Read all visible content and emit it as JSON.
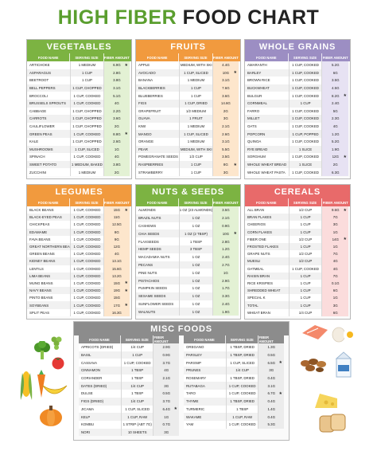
{
  "title": {
    "part1": "HIGH FIBER",
    "part2": "FOOD CHART"
  },
  "columns": {
    "food": "FOOD NAME",
    "serving": "SERVING SIZE",
    "fiber": "FIBER AMOUNT"
  },
  "colors": {
    "green": "#7cb342",
    "green_light": "#e3f1d4",
    "orange": "#f19a3e",
    "orange_light": "#fde6cc",
    "purple": "#9c8ec3",
    "purple_light": "#e7e2f3",
    "red": "#e86a6a",
    "red_light": "#fbdcdc",
    "gray": "#8c8c8c",
    "gray_light": "#ececec"
  },
  "sections": {
    "vegetables": {
      "title": "VEGETABLES",
      "rows": [
        {
          "food": "ARTICHOKE",
          "serving": "1 MEDIUM",
          "fiber": "6.9G",
          "star": "★"
        },
        {
          "food": "ASPARAGUS",
          "serving": "1 CUP",
          "fiber": "2.8G",
          "star": ""
        },
        {
          "food": "BEETROOT",
          "serving": "1 CUP",
          "fiber": "3.8G",
          "star": ""
        },
        {
          "food": "BELL PEPPERS",
          "serving": "1 CUP, CHOPPED",
          "fiber": "3.1G",
          "star": ""
        },
        {
          "food": "BROCCOLI",
          "serving": "1 CUP, COOKED",
          "fiber": "5.1G",
          "star": ""
        },
        {
          "food": "BRUSSELS SPROUTS",
          "serving": "1 CUP, COOKED",
          "fiber": "4G",
          "star": ""
        },
        {
          "food": "CABBAGE",
          "serving": "1 CUP, CHOPPED",
          "fiber": "2.2G",
          "star": ""
        },
        {
          "food": "CARROTS",
          "serving": "1 CUP, CHOPPED",
          "fiber": "3.6G",
          "star": ""
        },
        {
          "food": "CAULIFLOWER",
          "serving": "1 CUP, CHOPPED",
          "fiber": "2G",
          "star": ""
        },
        {
          "food": "GREEN PEAS",
          "serving": "1 CUP, COOKED",
          "fiber": "8.8G",
          "star": "★"
        },
        {
          "food": "KALE",
          "serving": "1 CUP, CHOPPED",
          "fiber": "2.6G",
          "star": ""
        },
        {
          "food": "MUSHROOMS",
          "serving": "1 CUP, SLICED",
          "fiber": "1G",
          "star": ""
        },
        {
          "food": "SPINACH",
          "serving": "1 CUP, COOKED",
          "fiber": "4G",
          "star": ""
        },
        {
          "food": "SWEET POTATO",
          "serving": "1 MEDIUM, BAKED",
          "fiber": "3.8G",
          "star": ""
        },
        {
          "food": "ZUCCHINI",
          "serving": "1 MEDIUM",
          "fiber": "2G",
          "star": ""
        }
      ]
    },
    "fruits": {
      "title": "FRUITS",
      "rows": [
        {
          "food": "APPLE",
          "serving": "1 MEDIUM, WITH SKIN",
          "fiber": "4.4G",
          "star": ""
        },
        {
          "food": "AVOCADO",
          "serving": "1 CUP, SLICED",
          "fiber": "10G",
          "star": "★"
        },
        {
          "food": "BANANA",
          "serving": "1 MEDIUM",
          "fiber": "3.1G",
          "star": ""
        },
        {
          "food": "BLACKBERRIES",
          "serving": "1 CUP",
          "fiber": "7.6G",
          "star": ""
        },
        {
          "food": "BLUEBERRIES",
          "serving": "1 CUP",
          "fiber": "3.6G",
          "star": ""
        },
        {
          "food": "FIGS",
          "serving": "1 CUP, DRIED",
          "fiber": "14.6G",
          "star": ""
        },
        {
          "food": "GRAPEFRUIT",
          "serving": "1/2 MEDIUM",
          "fiber": "2G",
          "star": ""
        },
        {
          "food": "GUAVA",
          "serving": "1 FRUIT",
          "fiber": "3G",
          "star": ""
        },
        {
          "food": "KIWI",
          "serving": "1 MEDIUM",
          "fiber": "2.1G",
          "star": ""
        },
        {
          "food": "MANGO",
          "serving": "1 CUP, SLICED",
          "fiber": "2.6G",
          "star": ""
        },
        {
          "food": "ORANGE",
          "serving": "1 MEDIUM",
          "fiber": "3.1G",
          "star": ""
        },
        {
          "food": "PEAR",
          "serving": "1 MEDIUM, WITH SKIN",
          "fiber": "5.5G",
          "star": ""
        },
        {
          "food": "POMEGRANATE SEEDS",
          "serving": "1/2 CUP",
          "fiber": "3.5G",
          "star": ""
        },
        {
          "food": "RASPBERRIES",
          "serving": "1 CUP",
          "fiber": "8G",
          "star": "★"
        },
        {
          "food": "STRAWBERRY",
          "serving": "1 CUP",
          "fiber": "3G",
          "star": ""
        }
      ]
    },
    "grains": {
      "title": "WHOLE GRAINS",
      "rows": [
        {
          "food": "AMARANTH",
          "serving": "1 CUP, COOKED",
          "fiber": "5.2G",
          "star": ""
        },
        {
          "food": "BARLEY",
          "serving": "1 CUP, COOKED",
          "fiber": "6G",
          "star": ""
        },
        {
          "food": "BROWN RICE",
          "serving": "1 CUP, COOKED",
          "fiber": "3.5G",
          "star": ""
        },
        {
          "food": "BUCKWHEAT",
          "serving": "1 CUP, COOKED",
          "fiber": "4.5G",
          "star": ""
        },
        {
          "food": "BULGUR",
          "serving": "1 CUP, COOKED",
          "fiber": "8.2G",
          "star": "★"
        },
        {
          "food": "CORNMEAL",
          "serving": "1 CUP",
          "fiber": "2.4G",
          "star": ""
        },
        {
          "food": "FARRO",
          "serving": "1 CUP, COOKED",
          "fiber": "5G",
          "star": ""
        },
        {
          "food": "MILLET",
          "serving": "1 CUP, COOKED",
          "fiber": "2.3G",
          "star": ""
        },
        {
          "food": "OATS",
          "serving": "1 CUP, COOKED",
          "fiber": "4G",
          "star": ""
        },
        {
          "food": "POPCORN",
          "serving": "1 CUP, POPPED",
          "fiber": "1.2G",
          "star": ""
        },
        {
          "food": "QUINOA",
          "serving": "1 CUP, COOKED",
          "fiber": "5.2G",
          "star": ""
        },
        {
          "food": "RYE BREAD",
          "serving": "1 SLICE",
          "fiber": "1.9G",
          "star": ""
        },
        {
          "food": "SORGHUM",
          "serving": "1 CUP, COOKED",
          "fiber": "12G",
          "star": "★"
        },
        {
          "food": "WHOLE WHEAT BREAD",
          "serving": "1 SLICE",
          "fiber": "2G",
          "star": ""
        },
        {
          "food": "WHOLE WHEAT PASTA",
          "serving": "1 CUP, COOKED",
          "fiber": "6.3G",
          "star": ""
        }
      ]
    },
    "legumes": {
      "title": "LEGUMES",
      "rows": [
        {
          "food": "BLACK BEANS",
          "serving": "1 CUP, COOKED",
          "fiber": "15G",
          "star": "★"
        },
        {
          "food": "BLACK-EYED PEAS",
          "serving": "1 CUP, COOKED",
          "fiber": "11G",
          "star": ""
        },
        {
          "food": "CHICKPEAS",
          "serving": "1 CUP, COOKED",
          "fiber": "12.5G",
          "star": ""
        },
        {
          "food": "EDAMAME",
          "serving": "1 CUP, COOKED",
          "fiber": "8G",
          "star": ""
        },
        {
          "food": "FAVA BEANS",
          "serving": "1 CUP, COOKED",
          "fiber": "9G",
          "star": ""
        },
        {
          "food": "GREAT NORTHERN BEANS",
          "serving": "1 CUP, COOKED",
          "fiber": "12G",
          "star": ""
        },
        {
          "food": "GREEN BEANS",
          "serving": "1 CUP, COOKED",
          "fiber": "4G",
          "star": ""
        },
        {
          "food": "KIDNEY BEANS",
          "serving": "1 CUP, COOKED",
          "fiber": "13.1G",
          "star": ""
        },
        {
          "food": "LENTILS",
          "serving": "1 CUP, COOKED",
          "fiber": "15.6G",
          "star": ""
        },
        {
          "food": "LIMA BEANS",
          "serving": "1 CUP, COOKED",
          "fiber": "13.2G",
          "star": ""
        },
        {
          "food": "MUNG BEANS",
          "serving": "1 CUP, COOKED",
          "fiber": "15G",
          "star": "★"
        },
        {
          "food": "NAVY BEANS",
          "serving": "1 CUP, COOKED",
          "fiber": "19G",
          "star": "★"
        },
        {
          "food": "PINTO BEANS",
          "serving": "1 CUP, COOKED",
          "fiber": "15G",
          "star": ""
        },
        {
          "food": "SOYBEANS",
          "serving": "1 CUP, COOKED",
          "fiber": "17G",
          "star": "★"
        },
        {
          "food": "SPLIT PEAS",
          "serving": "1 CUP, COOKED",
          "fiber": "16.3G",
          "star": ""
        }
      ]
    },
    "nuts": {
      "title": "NUTS & SEEDS",
      "rows": [
        {
          "food": "ALMONDS",
          "serving": "1 OZ (23 ALMONDS)",
          "fiber": "3.5G",
          "star": ""
        },
        {
          "food": "BRAZIL NUTS",
          "serving": "1 OZ",
          "fiber": "2.1G",
          "star": ""
        },
        {
          "food": "CASHEWS",
          "serving": "1 OZ",
          "fiber": "0.9G",
          "star": ""
        },
        {
          "food": "CHIA SEEDS",
          "serving": "1 OZ (2 TBSP)",
          "fiber": "10G",
          "star": "★"
        },
        {
          "food": "FLAXSEEDS",
          "serving": "1 TBSP",
          "fiber": "2.8G",
          "star": ""
        },
        {
          "food": "HEMP SEEDS",
          "serving": "3 TBSP",
          "fiber": "1.2G",
          "star": ""
        },
        {
          "food": "MACADAMIA NUTS",
          "serving": "1 OZ",
          "fiber": "2.4G",
          "star": ""
        },
        {
          "food": "PECANS",
          "serving": "1 OZ",
          "fiber": "2.7G",
          "star": ""
        },
        {
          "food": "PINE NUTS",
          "serving": "1 OZ",
          "fiber": "1G",
          "star": ""
        },
        {
          "food": "PISTACHIOS",
          "serving": "1 OZ",
          "fiber": "2.9G",
          "star": ""
        },
        {
          "food": "PUMPKIN SEEDS",
          "serving": "1 OZ",
          "fiber": "1.7G",
          "star": ""
        },
        {
          "food": "SESAME SEEDS",
          "serving": "1 OZ",
          "fiber": "3.3G",
          "star": ""
        },
        {
          "food": "SUNFLOWER SEEDS",
          "serving": "1 OZ",
          "fiber": "2.4G",
          "star": ""
        },
        {
          "food": "WALNUTS",
          "serving": "1 OZ",
          "fiber": "1.9G",
          "star": ""
        }
      ]
    },
    "cereals": {
      "title": "CEREALS",
      "rows": [
        {
          "food": "ALL BRAN",
          "serving": "1/2 CUP",
          "fiber": "9.6G",
          "star": "★"
        },
        {
          "food": "BRAN FLAKES",
          "serving": "1 CUP",
          "fiber": "7G",
          "star": ""
        },
        {
          "food": "CHEERIOS",
          "serving": "1 CUP",
          "fiber": "3G",
          "star": ""
        },
        {
          "food": "CORN FLAKES",
          "serving": "1 CUP",
          "fiber": "1G",
          "star": ""
        },
        {
          "food": "FIBER ONE",
          "serving": "1/2 CUP",
          "fiber": "14G",
          "star": "★"
        },
        {
          "food": "FROSTED FLAKES",
          "serving": "1 CUP",
          "fiber": "1G",
          "star": ""
        },
        {
          "food": "GRAPE NUTS",
          "serving": "1/2 CUP",
          "fiber": "7G",
          "star": ""
        },
        {
          "food": "MUESLI",
          "serving": "1/2 CUP",
          "fiber": "4G",
          "star": ""
        },
        {
          "food": "OATMEAL",
          "serving": "1 CUP, COOKED",
          "fiber": "4G",
          "star": ""
        },
        {
          "food": "RAISIN BRAN",
          "serving": "1 CUP",
          "fiber": "7G",
          "star": ""
        },
        {
          "food": "RICE KRISPIES",
          "serving": "1 CUP",
          "fiber": "0.1G",
          "star": ""
        },
        {
          "food": "SHREDDED WHEAT",
          "serving": "1 CUP",
          "fiber": "6G",
          "star": ""
        },
        {
          "food": "SPECIAL K",
          "serving": "1 CUP",
          "fiber": "1G",
          "star": ""
        },
        {
          "food": "TOTAL",
          "serving": "1 CUP",
          "fiber": "3G",
          "star": ""
        },
        {
          "food": "WHEAT BRAN",
          "serving": "1/4 CUP",
          "fiber": "6G",
          "star": ""
        }
      ]
    },
    "misc": {
      "title": "MISC FOODS",
      "left": [
        {
          "food": "APRICOTS (DRIED)",
          "serving": "1/4 CUP",
          "fiber": "2.9G",
          "star": ""
        },
        {
          "food": "BASIL",
          "serving": "1 CUP",
          "fiber": "0.9G",
          "star": ""
        },
        {
          "food": "CASSAVA",
          "serving": "1 CUP, COOKED",
          "fiber": "3.7G",
          "star": ""
        },
        {
          "food": "CINNAMON",
          "serving": "1 TBSP",
          "fiber": "4G",
          "star": ""
        },
        {
          "food": "CORIANDER",
          "serving": "1 TBSP",
          "fiber": "2.1G",
          "star": ""
        },
        {
          "food": "DATES (DRIED)",
          "serving": "1/4 CUP",
          "fiber": "3G",
          "star": ""
        },
        {
          "food": "DULSE",
          "serving": "1 TBSP",
          "fiber": "0.5G",
          "star": ""
        },
        {
          "food": "FIGS (DRIED)",
          "serving": "1/4 CUP",
          "fiber": "3.7G",
          "star": ""
        },
        {
          "food": "JICAMA",
          "serving": "1 CUP, SLICED",
          "fiber": "6.4G",
          "star": "★"
        },
        {
          "food": "KELP",
          "serving": "1 CUP, RAW",
          "fiber": "1G",
          "star": ""
        },
        {
          "food": "KOMBU",
          "serving": "1 STRIP (ABT 7G)",
          "fiber": "0.7G",
          "star": ""
        },
        {
          "food": "NORI",
          "serving": "10 SHEETS",
          "fiber": "3G",
          "star": ""
        }
      ],
      "right": [
        {
          "food": "OREGANO",
          "serving": "1 TBSP, DRIED",
          "fiber": "1.3G",
          "star": ""
        },
        {
          "food": "PARSLEY",
          "serving": "1 TBSP, DRIED",
          "fiber": "0.5G",
          "star": ""
        },
        {
          "food": "PARSNIP",
          "serving": "1 CUP, SLICED",
          "fiber": "6.5G",
          "star": "★"
        },
        {
          "food": "PRUNES",
          "serving": "1/4 CUP",
          "fiber": "3G",
          "star": ""
        },
        {
          "food": "ROSEMARY",
          "serving": "1 TBSP, DRIED",
          "fiber": "0.4G",
          "star": ""
        },
        {
          "food": "RUTABAGA",
          "serving": "1 CUP, COOKED",
          "fiber": "3.1G",
          "star": ""
        },
        {
          "food": "TARO",
          "serving": "1 CUP, COOKED",
          "fiber": "6.7G",
          "star": "★"
        },
        {
          "food": "THYME",
          "serving": "1 TBSP, DRIED",
          "fiber": "0.4G",
          "star": ""
        },
        {
          "food": "TURMERIC",
          "serving": "1 TBSP",
          "fiber": "1.4G",
          "star": ""
        },
        {
          "food": "WAKAME",
          "serving": "1 CUP, RAW",
          "fiber": "0.4G",
          "star": ""
        },
        {
          "food": "YAM",
          "serving": "1 CUP, COOKED",
          "fiber": "5.3G",
          "star": ""
        }
      ]
    }
  },
  "illustrations": {
    "left": [
      "broccoli-icon",
      "tomato-icon",
      "corn-icon",
      "carrot-icon",
      "banana-icon",
      "pumpkin-icon",
      "grapes-icon"
    ],
    "right": [
      "salmon-icon",
      "eggs-icon",
      "nuts-icon",
      "milk-icon",
      "cheese-icon",
      "bread-icon"
    ]
  }
}
